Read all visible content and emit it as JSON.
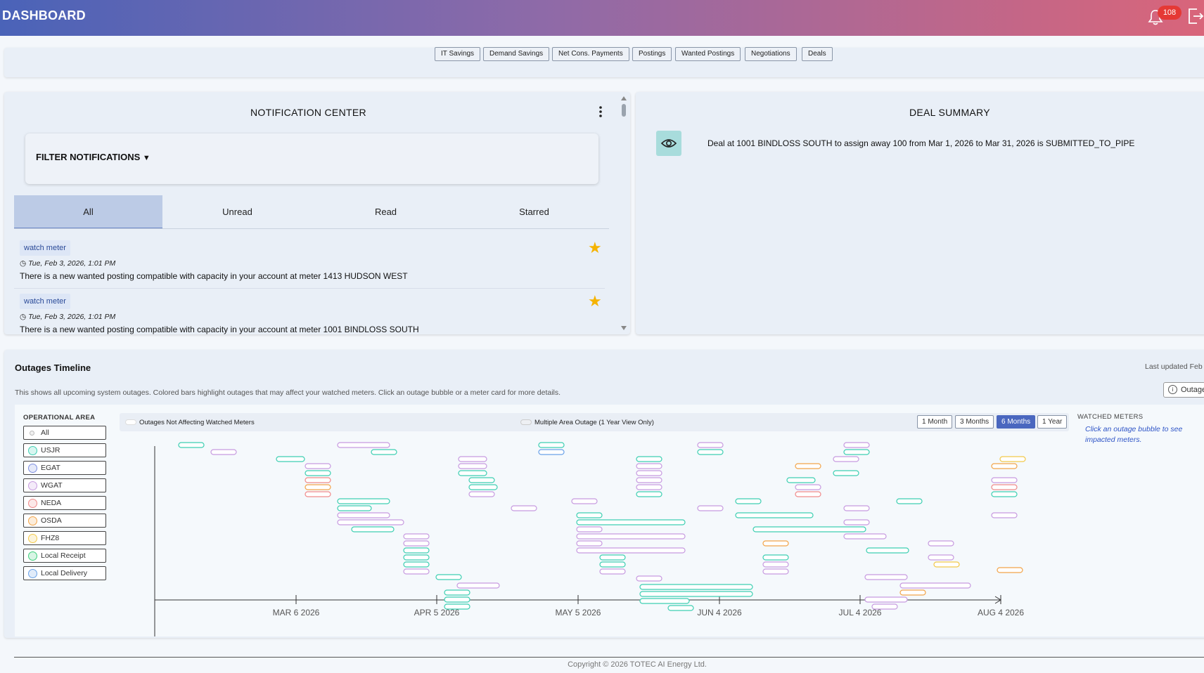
{
  "header": {
    "title": "DASHBOARD",
    "notification_count": "108"
  },
  "toolbar": {
    "buttons": [
      "IT Savings",
      "Demand Savings",
      "Net Cons. Payments",
      "Postings",
      "Wanted Postings",
      "Negotiations",
      "Deals"
    ]
  },
  "notification_center": {
    "title": "NOTIFICATION CENTER",
    "filter_label": "FILTER NOTIFICATIONS",
    "tabs": [
      "All",
      "Unread",
      "Read",
      "Starred"
    ],
    "active_tab": "All",
    "items": [
      {
        "tag": "watch meter",
        "time": "Tue, Feb 3, 2026, 1:01 PM",
        "message": "There is a new wanted posting compatible with capacity in your account at meter 1413 HUDSON WEST",
        "starred": true
      },
      {
        "tag": "watch meter",
        "time": "Tue, Feb 3, 2026, 1:01 PM",
        "message": "There is a new wanted posting compatible with capacity in your account at meter 1001 BINDLOSS SOUTH",
        "starred": true
      }
    ]
  },
  "deal_summary": {
    "title": "DEAL SUMMARY",
    "message": "Deal at 1001 BINDLOSS SOUTH to assign away 100 from Mar 1, 2026 to Mar 31, 2026 is SUBMITTED_TO_PIPE"
  },
  "outages": {
    "title": "Outages Timeline",
    "last_updated": "Last updated Feb",
    "info_button": "Outage",
    "description": "This shows all upcoming system outages. Colored bars highlight outages that may affect your watched meters. Click an outage bubble or a meter card for more details.",
    "area_heading": "OPERATIONAL AREA",
    "areas": [
      {
        "label": "All",
        "color": "#bbbbbb"
      },
      {
        "label": "USJR",
        "color": "#3ecfb2"
      },
      {
        "label": "EGAT",
        "color": "#7d8fe0"
      },
      {
        "label": "WGAT",
        "color": "#c79be0"
      },
      {
        "label": "NEDA",
        "color": "#f08a8a"
      },
      {
        "label": "OSDA",
        "color": "#f2a54a"
      },
      {
        "label": "FHZ8",
        "color": "#f2c94a"
      },
      {
        "label": "Local Receipt",
        "color": "#3ecf7c"
      },
      {
        "label": "Local Delivery",
        "color": "#6aa2e8"
      }
    ],
    "legend": [
      "Outages Not Affecting Watched Meters",
      "Multiple Area Outage (1 Year View Only)"
    ],
    "ranges": [
      "1 Month",
      "3 Months",
      "6 Months",
      "1 Year"
    ],
    "active_range": "6 Months",
    "axis_labels": [
      "MAR 6 2026",
      "APR 5 2026",
      "MAY 5 2026",
      "JUN 4 2026",
      "JUL 4 2026",
      "AUG 4 2026"
    ],
    "watched_heading": "WATCHED METERS",
    "watched_hint": "Click an outage bubble to see impacted meters."
  },
  "footer": {
    "copyright": "Copyright © 2026 TOTEC AI Energy Ltd."
  }
}
